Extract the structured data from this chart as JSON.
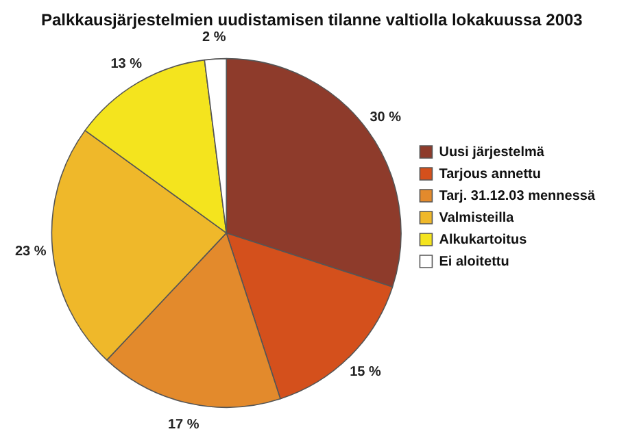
{
  "chart_data": {
    "type": "pie",
    "title": "Palkkausjärjestelmien uudistamisen tilanne valtiolla lokakuussa 2003",
    "categories": [
      "Uusi järjestelmä",
      "Tarjous annettu",
      "Tarj. 31.12.03 mennessä",
      "Valmisteilla",
      "Alkukartoitus",
      "Ei aloitettu"
    ],
    "values": [
      30,
      15,
      17,
      23,
      13,
      2
    ],
    "colors": [
      "#8e3b2b",
      "#d4501c",
      "#e38a2c",
      "#efb82a",
      "#f4e41e",
      "#ffffff"
    ],
    "value_labels": [
      "30 %",
      "15 %",
      "17 %",
      "23 %",
      "13 %",
      "2 %"
    ],
    "legend": "right"
  }
}
